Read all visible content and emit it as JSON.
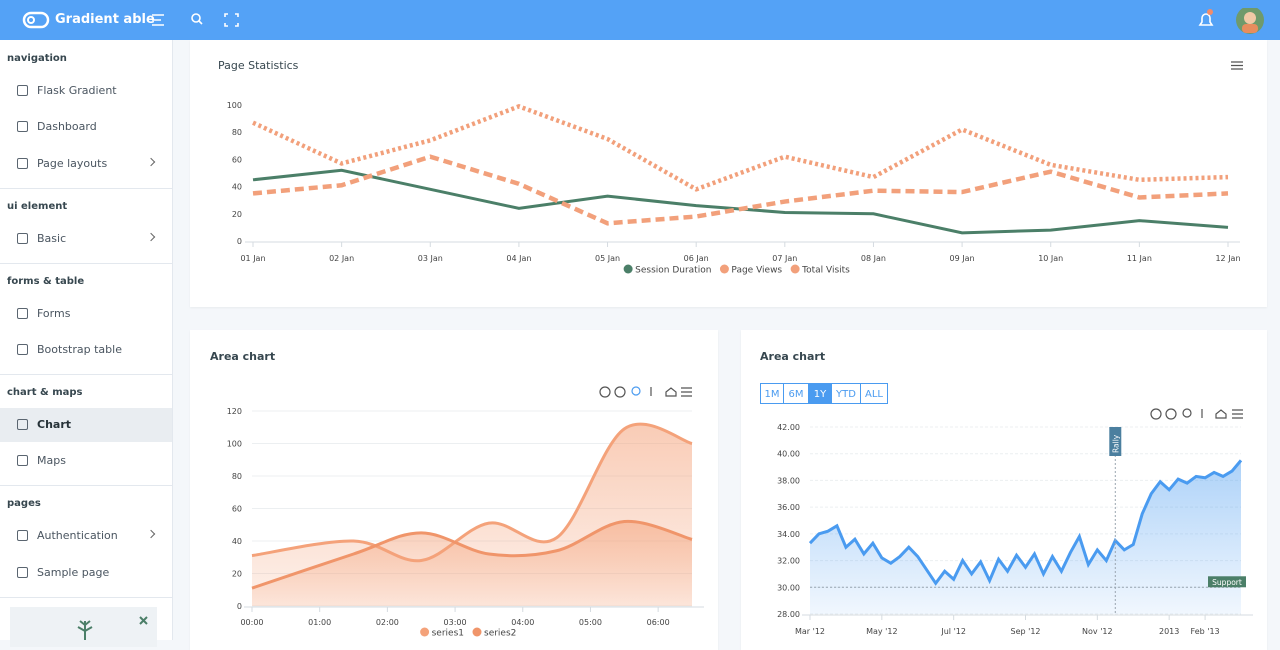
{
  "header": {
    "brand": "Gradient able"
  },
  "sidebar": {
    "sections": [
      {
        "title": "navigation",
        "items": [
          {
            "label": "Flask Gradient"
          },
          {
            "label": "Dashboard"
          },
          {
            "label": "Page layouts",
            "submenu": true
          }
        ]
      },
      {
        "title": "ui element",
        "items": [
          {
            "label": "Basic",
            "submenu": true
          }
        ]
      },
      {
        "title": "forms & table",
        "items": [
          {
            "label": "Forms"
          },
          {
            "label": "Bootstrap table"
          }
        ]
      },
      {
        "title": "chart & maps",
        "items": [
          {
            "label": "Chart",
            "active": true
          },
          {
            "label": "Maps"
          }
        ]
      },
      {
        "title": "pages",
        "items": [
          {
            "label": "Authentication",
            "submenu": true
          },
          {
            "label": "Sample page"
          }
        ]
      }
    ]
  },
  "chart_data": [
    {
      "type": "line",
      "title": "Page Statistics",
      "categories": [
        "01 Jan",
        "02 Jan",
        "03 Jan",
        "04 Jan",
        "05 Jan",
        "06 Jan",
        "07 Jan",
        "08 Jan",
        "09 Jan",
        "10 Jan",
        "11 Jan",
        "12 Jan"
      ],
      "series": [
        {
          "name": "Session Duration",
          "color": "#4b7f68",
          "dash": "solid",
          "values": [
            45,
            52,
            38,
            24,
            33,
            26,
            21,
            20,
            6,
            8,
            15,
            10
          ]
        },
        {
          "name": "Page Views",
          "color": "#f2a07b",
          "dash": "dashed",
          "values": [
            35,
            41,
            62,
            42,
            13,
            18,
            29,
            37,
            36,
            51,
            32,
            35
          ]
        },
        {
          "name": "Total Visits",
          "color": "#f2a07b",
          "dash": "dotted",
          "values": [
            87,
            57,
            74,
            99,
            75,
            38,
            62,
            47,
            82,
            56,
            45,
            47
          ]
        }
      ],
      "ylim": [
        0,
        100
      ],
      "yticks": [
        0,
        20,
        40,
        60,
        80,
        100
      ],
      "grid": false,
      "legend": "bottom"
    },
    {
      "type": "area",
      "title": "Area chart",
      "x": [
        0,
        1.5,
        2.5,
        3.5,
        4.5,
        5.5,
        6.5
      ],
      "series": [
        {
          "name": "series1",
          "color": "#f4a27a",
          "values": [
            31,
            40,
            28,
            51,
            42,
            109,
            100
          ]
        },
        {
          "name": "series2",
          "color": "#f0956a",
          "values": [
            11,
            32,
            45,
            32,
            34,
            52,
            41
          ]
        }
      ],
      "xlim": [
        0,
        6.5
      ],
      "xticks": [
        {
          "value": 0,
          "label": "00:00"
        },
        {
          "value": 1,
          "label": "01:00"
        },
        {
          "value": 2,
          "label": "02:00"
        },
        {
          "value": 3,
          "label": "03:00"
        },
        {
          "value": 4,
          "label": "04:00"
        },
        {
          "value": 5,
          "label": "05:00"
        },
        {
          "value": 6,
          "label": "06:00"
        }
      ],
      "ylim": [
        0,
        120
      ],
      "yticks": [
        0,
        20,
        40,
        60,
        80,
        100,
        120
      ],
      "grid": true,
      "legend": "bottom"
    },
    {
      "type": "area",
      "title": "Area chart",
      "range_buttons": [
        "1M",
        "6M",
        "1Y",
        "YTD",
        "ALL"
      ],
      "active_range": 2,
      "x": [
        2,
        2.25,
        2.5,
        2.75,
        3,
        3.25,
        3.5,
        3.75,
        4,
        4.25,
        4.5,
        4.75,
        5,
        5.25,
        5.5,
        5.75,
        6,
        6.25,
        6.5,
        6.75,
        7,
        7.25,
        7.5,
        7.75,
        8,
        8.25,
        8.5,
        8.75,
        9,
        9.25,
        9.5,
        9.75,
        10,
        10.25,
        10.5,
        10.75,
        11,
        11.25,
        11.5,
        11.75,
        12,
        12.25,
        12.5,
        12.75,
        13,
        13.25,
        13.5,
        13.75,
        14
      ],
      "series": [
        {
          "color": "#4a9bf0",
          "values": [
            33.3,
            34.0,
            34.2,
            34.6,
            33.0,
            33.6,
            32.5,
            33.3,
            32.2,
            31.8,
            32.3,
            33.0,
            32.3,
            31.3,
            30.3,
            31.2,
            30.6,
            32.0,
            31.0,
            31.9,
            30.5,
            32.1,
            31.2,
            32.4,
            31.5,
            32.5,
            31.0,
            32.3,
            31.2,
            32.6,
            33.8,
            31.7,
            32.8,
            32.0,
            33.5,
            32.8,
            33.2,
            35.5,
            37.0,
            37.9,
            37.3,
            38.1,
            37.8,
            38.3,
            38.2,
            38.6,
            38.3,
            38.7,
            39.5
          ]
        }
      ],
      "xlim": [
        2,
        14
      ],
      "xticks": [
        {
          "value": 2,
          "label": "Mar '12"
        },
        {
          "value": 4,
          "label": "May '12"
        },
        {
          "value": 6,
          "label": "Jul '12"
        },
        {
          "value": 8,
          "label": "Sep '12"
        },
        {
          "value": 10,
          "label": "Nov '12"
        },
        {
          "value": 12,
          "label": "2013"
        },
        {
          "value": 13,
          "label": "Feb '13"
        }
      ],
      "ylim": [
        28,
        42
      ],
      "yticks": [
        {
          "value": 28,
          "label": "28.00"
        },
        {
          "value": 30,
          "label": "30.00"
        },
        {
          "value": 32,
          "label": "32.00"
        },
        {
          "value": 34,
          "label": "34.00"
        },
        {
          "value": 36,
          "label": "36.00"
        },
        {
          "value": 38,
          "label": "38.00"
        },
        {
          "value": 40,
          "label": "40.00"
        },
        {
          "value": 42,
          "label": "42.00"
        }
      ],
      "grid": true,
      "annotations": [
        {
          "x": 10.5,
          "label": "Rally"
        },
        {
          "y": 30,
          "label": "Support"
        }
      ]
    }
  ]
}
